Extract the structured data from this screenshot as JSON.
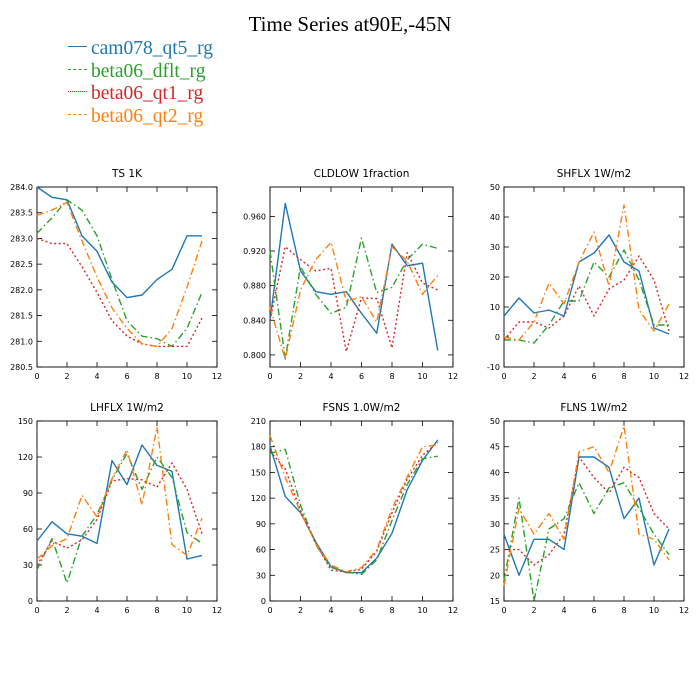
{
  "title": "Time Series at90E,-45N",
  "colors": {
    "cam078_qt5_rg": "#1f77b4",
    "beta06_dflt_rg": "#2ca02c",
    "beta06_qt1_rg": "#d62728",
    "beta06_qt2_rg": "#ff7f0e"
  },
  "legend": [
    {
      "name": "cam078_qt5_rg",
      "color": "#1f77b4",
      "dash": "solid"
    },
    {
      "name": "beta06_dflt_rg",
      "color": "#2ca02c",
      "dash": "dashdot"
    },
    {
      "name": "beta06_qt1_rg",
      "color": "#d62728",
      "dash": "dotted"
    },
    {
      "name": "beta06_qt2_rg",
      "color": "#ff7f0e",
      "dash": "dashdot"
    }
  ],
  "chart_data": [
    {
      "type": "line",
      "title": "TS   1K",
      "xlim": [
        0,
        12
      ],
      "ylim": [
        280.5,
        284.0
      ],
      "xticks": [
        0,
        2,
        4,
        6,
        8,
        10,
        12
      ],
      "yticks": [
        280.5,
        281.0,
        281.5,
        282.0,
        282.5,
        283.0,
        283.5,
        284.0
      ],
      "ytick_labels": [
        "280.5",
        "281.0",
        "281.5",
        "282.0",
        "282.5",
        "283.0",
        "283.5",
        "284.0"
      ],
      "x": [
        0,
        1,
        2,
        3,
        4,
        5,
        6,
        7,
        8,
        9,
        10,
        11
      ],
      "series": [
        {
          "name": "cam078_qt5_rg",
          "values": [
            284.0,
            283.8,
            283.75,
            283.05,
            282.75,
            282.15,
            281.85,
            281.9,
            282.2,
            282.4,
            283.05,
            283.05
          ]
        },
        {
          "name": "beta06_dflt_rg",
          "values": [
            283.1,
            283.4,
            283.75,
            283.55,
            283.05,
            282.2,
            281.4,
            281.1,
            281.05,
            280.9,
            281.25,
            281.95
          ]
        },
        {
          "name": "beta06_qt1_rg",
          "values": [
            283.0,
            282.9,
            282.9,
            282.45,
            281.95,
            281.4,
            281.1,
            280.95,
            280.9,
            280.9,
            280.9,
            281.45
          ]
        },
        {
          "name": "beta06_qt2_rg",
          "values": [
            283.45,
            283.55,
            283.7,
            282.95,
            282.25,
            281.65,
            281.25,
            280.95,
            280.9,
            281.25,
            282.05,
            282.95
          ]
        }
      ]
    },
    {
      "type": "line",
      "title": "CLDLOW   1fraction",
      "xlim": [
        0,
        12
      ],
      "ylim": [
        0.786,
        0.994
      ],
      "xticks": [
        0,
        2,
        4,
        6,
        8,
        10,
        12
      ],
      "yticks": [
        0.8,
        0.84,
        0.88,
        0.92,
        0.96
      ],
      "ytick_labels": [
        "0.800",
        "0.840",
        "0.880",
        "0.920",
        "0.960"
      ],
      "x": [
        0,
        1,
        2,
        3,
        4,
        5,
        6,
        7,
        8,
        9,
        10,
        11
      ],
      "series": [
        {
          "name": "cam078_qt5_rg",
          "values": [
            0.84,
            0.975,
            0.897,
            0.873,
            0.87,
            0.873,
            0.848,
            0.825,
            0.928,
            0.903,
            0.906,
            0.805
          ]
        },
        {
          "name": "beta06_dflt_rg",
          "values": [
            0.92,
            0.796,
            0.902,
            0.87,
            0.848,
            0.855,
            0.935,
            0.872,
            0.878,
            0.91,
            0.928,
            0.923
          ]
        },
        {
          "name": "beta06_qt1_rg",
          "values": [
            0.84,
            0.925,
            0.91,
            0.897,
            0.9,
            0.804,
            0.866,
            0.865,
            0.808,
            0.918,
            0.883,
            0.875
          ]
        },
        {
          "name": "beta06_qt2_rg",
          "values": [
            0.855,
            0.795,
            0.875,
            0.91,
            0.93,
            0.862,
            0.867,
            0.838,
            0.925,
            0.908,
            0.87,
            0.892
          ]
        }
      ]
    },
    {
      "type": "line",
      "title": "SHFLX   1W/m2",
      "xlim": [
        0,
        12
      ],
      "ylim": [
        -10,
        50
      ],
      "xticks": [
        0,
        2,
        4,
        6,
        8,
        10,
        12
      ],
      "yticks": [
        -10,
        0,
        10,
        20,
        30,
        40,
        50
      ],
      "ytick_labels": [
        "-10",
        "0",
        "10",
        "20",
        "30",
        "40",
        "50"
      ],
      "x": [
        0,
        1,
        2,
        3,
        4,
        5,
        6,
        7,
        8,
        9,
        10,
        11
      ],
      "series": [
        {
          "name": "cam078_qt5_rg",
          "values": [
            7,
            13,
            8,
            9,
            7,
            25,
            28,
            34,
            25,
            22,
            3,
            1
          ]
        },
        {
          "name": "beta06_dflt_rg",
          "values": [
            -1,
            -1,
            -2,
            4,
            12,
            12,
            25,
            20,
            29,
            19,
            4,
            4
          ]
        },
        {
          "name": "beta06_qt1_rg",
          "values": [
            -1,
            5,
            5,
            3,
            7,
            17,
            7,
            16,
            19,
            27,
            19,
            2
          ]
        },
        {
          "name": "beta06_qt2_rg",
          "values": [
            0,
            -1,
            5,
            18,
            11,
            25,
            35,
            17,
            44,
            9,
            2,
            11
          ]
        }
      ]
    },
    {
      "type": "line",
      "title": "LHFLX   1W/m2",
      "xlim": [
        0,
        12
      ],
      "ylim": [
        0,
        150
      ],
      "xticks": [
        0,
        2,
        4,
        6,
        8,
        10,
        12
      ],
      "yticks": [
        0,
        30,
        60,
        90,
        120,
        150
      ],
      "ytick_labels": [
        "0",
        "30",
        "60",
        "90",
        "120",
        "150"
      ],
      "x": [
        0,
        1,
        2,
        3,
        4,
        5,
        6,
        7,
        8,
        9,
        10,
        11
      ],
      "series": [
        {
          "name": "cam078_qt5_rg",
          "values": [
            50,
            66,
            56,
            54,
            48,
            117,
            97,
            130,
            113,
            108,
            35,
            38
          ]
        },
        {
          "name": "beta06_dflt_rg",
          "values": [
            26,
            52,
            15,
            54,
            72,
            101,
            123,
            93,
            120,
            103,
            57,
            48
          ]
        },
        {
          "name": "beta06_qt1_rg",
          "values": [
            30,
            50,
            44,
            51,
            68,
            100,
            102,
            101,
            95,
            115,
            93,
            56
          ]
        },
        {
          "name": "beta06_qt2_rg",
          "values": [
            35,
            46,
            52,
            88,
            70,
            102,
            126,
            80,
            145,
            47,
            38,
            69
          ]
        }
      ]
    },
    {
      "type": "line",
      "title": "FSNS   1.0W/m2",
      "xlim": [
        0,
        12
      ],
      "ylim": [
        0,
        210
      ],
      "xticks": [
        0,
        2,
        4,
        6,
        8,
        10,
        12
      ],
      "yticks": [
        0,
        30,
        60,
        90,
        120,
        150,
        180,
        210
      ],
      "ytick_labels": [
        "0",
        "30",
        "60",
        "90",
        "120",
        "150",
        "180",
        "210"
      ],
      "x": [
        0,
        1,
        2,
        3,
        4,
        5,
        6,
        7,
        8,
        9,
        10,
        11
      ],
      "series": [
        {
          "name": "cam078_qt5_rg",
          "values": [
            181,
            122,
            103,
            69,
            40,
            33,
            33,
            50,
            79,
            130,
            164,
            188
          ]
        },
        {
          "name": "beta06_dflt_rg",
          "values": [
            172,
            177,
            112,
            66,
            39,
            34,
            31,
            48,
            94,
            136,
            166,
            169
          ]
        },
        {
          "name": "beta06_qt1_rg",
          "values": [
            175,
            154,
            106,
            67,
            36,
            34,
            37,
            58,
            103,
            142,
            170,
            185
          ]
        },
        {
          "name": "beta06_qt2_rg",
          "values": [
            193,
            144,
            104,
            67,
            42,
            34,
            39,
            60,
            108,
            145,
            180,
            182
          ]
        }
      ]
    },
    {
      "type": "line",
      "title": "FLNS   1W/m2",
      "xlim": [
        0,
        12
      ],
      "ylim": [
        15,
        50
      ],
      "xticks": [
        0,
        2,
        4,
        6,
        8,
        10,
        12
      ],
      "yticks": [
        15,
        20,
        25,
        30,
        35,
        40,
        45,
        50
      ],
      "ytick_labels": [
        "15",
        "20",
        "25",
        "30",
        "35",
        "40",
        "45",
        "50"
      ],
      "x": [
        0,
        1,
        2,
        3,
        4,
        5,
        6,
        7,
        8,
        9,
        10,
        11
      ],
      "series": [
        {
          "name": "cam078_qt5_rg",
          "values": [
            28,
            20,
            27,
            27,
            25,
            43,
            43,
            41,
            31,
            35,
            22,
            29
          ]
        },
        {
          "name": "beta06_dflt_rg",
          "values": [
            19,
            35,
            15,
            29,
            31,
            38,
            32,
            37,
            38,
            33,
            28,
            24
          ]
        },
        {
          "name": "beta06_qt1_rg",
          "values": [
            25,
            25,
            22,
            24,
            28,
            43,
            39,
            36,
            41,
            39,
            32,
            29
          ]
        },
        {
          "name": "beta06_qt2_rg",
          "values": [
            18,
            33,
            28,
            32,
            27,
            44,
            45,
            40,
            49,
            28,
            27,
            23
          ]
        }
      ]
    }
  ]
}
